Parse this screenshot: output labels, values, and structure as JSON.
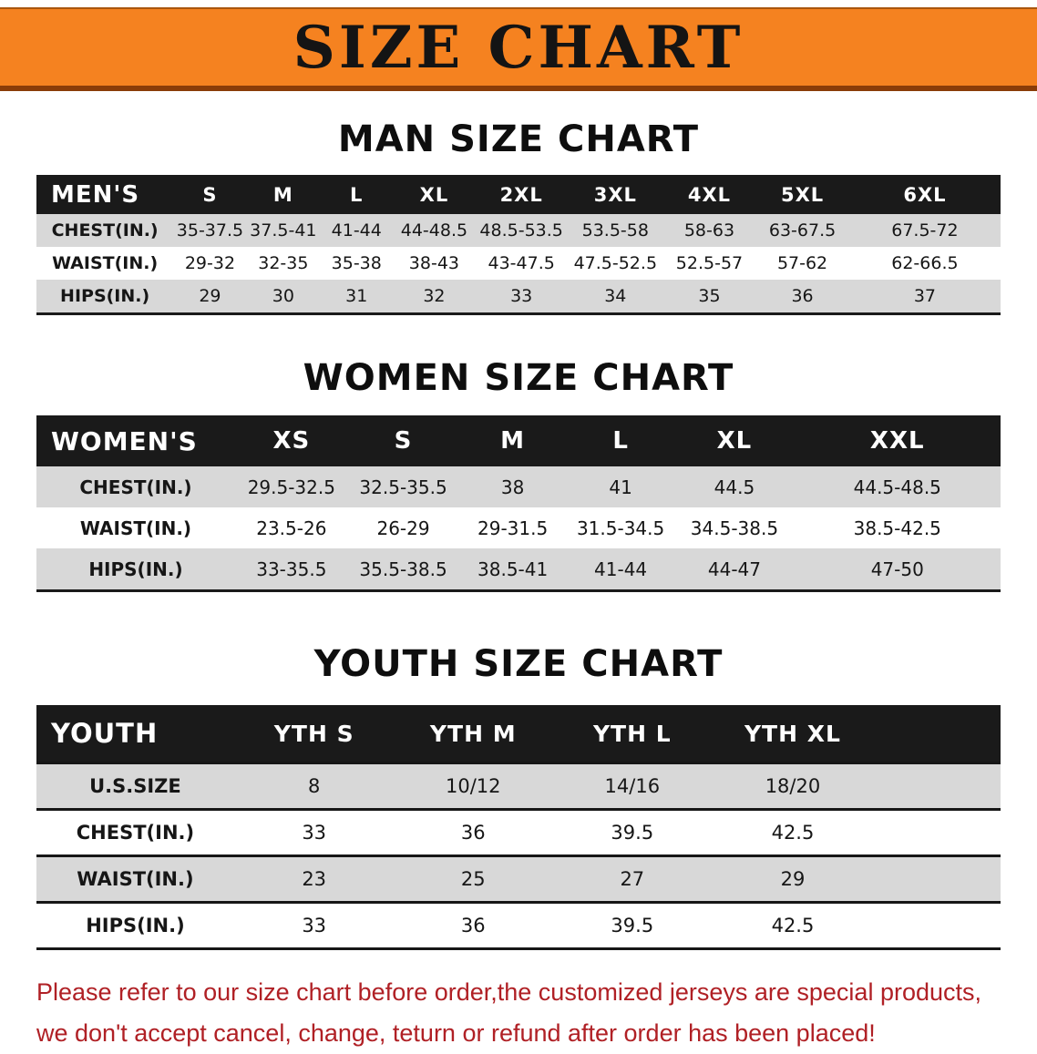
{
  "banner": {
    "title": "SIZE CHART"
  },
  "colors": {
    "banner_bg": "#F58220",
    "banner_edge": "#8A3C08",
    "header_bg": "#1A1A1A",
    "row_gray": "#D8D8D8",
    "disclaimer_red": "#B02025"
  },
  "sections": [
    {
      "id": "men",
      "heading": "MAN SIZE CHART",
      "columns": [
        "MEN'S",
        "S",
        "M",
        "L",
        "XL",
        "2XL",
        "3XL",
        "4XL",
        "5XL",
        "6XL"
      ],
      "col_widths": [
        "14.2%",
        "7.6%",
        "7.6%",
        "7.6%",
        "8.5%",
        "9.6%",
        "9.9%",
        "9.6%",
        "9.7%",
        "15.7%"
      ],
      "rows": [
        {
          "label": "CHEST(IN.)",
          "shade": "gray",
          "values": [
            "35-37.5",
            "37.5-41",
            "41-44",
            "44-48.5",
            "48.5-53.5",
            "53.5-58",
            "58-63",
            "63-67.5",
            "67.5-72"
          ]
        },
        {
          "label": "WAIST(IN.)",
          "shade": "white",
          "values": [
            "29-32",
            "32-35",
            "35-38",
            "38-43",
            "43-47.5",
            "47.5-52.5",
            "52.5-57",
            "57-62",
            "62-66.5"
          ]
        },
        {
          "label": "HIPS(IN.)",
          "shade": "gray",
          "values": [
            "29",
            "30",
            "31",
            "32",
            "33",
            "34",
            "35",
            "36",
            "37"
          ]
        }
      ]
    },
    {
      "id": "women",
      "heading": "WOMEN SIZE CHART",
      "columns": [
        "WOMEN'S",
        "XS",
        "S",
        "M",
        "L",
        "XL",
        "XXL"
      ],
      "col_widths": [
        "20.6%",
        "11.7%",
        "11.5%",
        "11.2%",
        "11.2%",
        "12.4%",
        "21.4%"
      ],
      "rows": [
        {
          "label": "CHEST(IN.)",
          "shade": "gray",
          "values": [
            "29.5-32.5",
            "32.5-35.5",
            "38",
            "41",
            "44.5",
            "44.5-48.5"
          ]
        },
        {
          "label": "WAIST(IN.)",
          "shade": "white",
          "values": [
            "23.5-26",
            "26-29",
            "29-31.5",
            "31.5-34.5",
            "34.5-38.5",
            "38.5-42.5"
          ]
        },
        {
          "label": "HIPS(IN.)",
          "shade": "gray",
          "values": [
            "33-35.5",
            "35.5-38.5",
            "38.5-41",
            "41-44",
            "44-47",
            "47-50"
          ]
        }
      ]
    },
    {
      "id": "youth",
      "heading": "YOUTH SIZE CHART",
      "columns": [
        "YOUTH",
        "YTH S",
        "YTH M",
        "YTH L",
        "YTH XL",
        ""
      ],
      "col_widths": [
        "20.5%",
        "16.6%",
        "16.4%",
        "16.6%",
        "16.7%",
        "13.2%"
      ],
      "rows": [
        {
          "label": "U.S.SIZE",
          "shade": "gray",
          "values": [
            "8",
            "10/12",
            "14/16",
            "18/20"
          ]
        },
        {
          "label": "CHEST(IN.)",
          "shade": "white",
          "values": [
            "33",
            "36",
            "39.5",
            "42.5"
          ]
        },
        {
          "label": "WAIST(IN.)",
          "shade": "gray",
          "values": [
            "23",
            "25",
            "27",
            "29"
          ]
        },
        {
          "label": "HIPS(IN.)",
          "shade": "white",
          "values": [
            "33",
            "36",
            "39.5",
            "42.5"
          ]
        }
      ]
    }
  ],
  "disclaimer": {
    "line1": "Please refer to our size chart before order,the customized jerseys are special products,",
    "line2": "we don't accept cancel, change, teturn or refund after order has been placed!"
  }
}
